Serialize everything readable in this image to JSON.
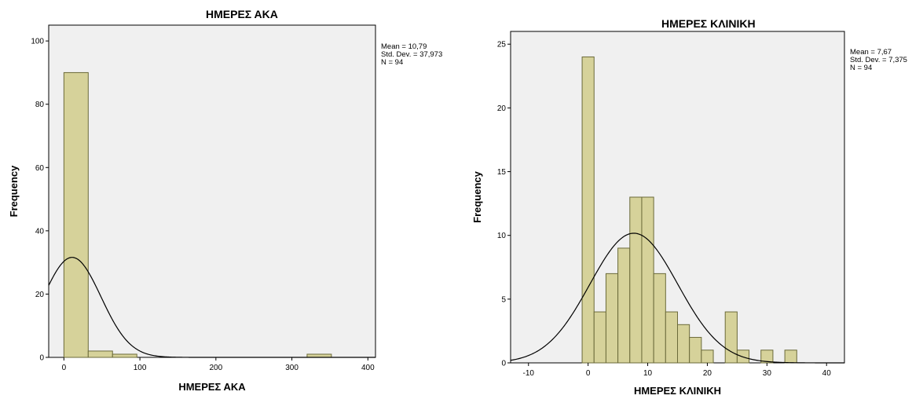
{
  "chart_data": [
    {
      "type": "bar",
      "title": "ΗΜΕΡΕΣ ΑΚΑ",
      "xlabel": "ΗΜΕΡΕΣ ΑΚΑ",
      "ylabel": "Frequency",
      "stats": [
        "Mean = 10,79",
        "Std. Dev. = 37,973",
        "N = 94"
      ],
      "xlim": [
        -20,
        410
      ],
      "ylim": [
        0,
        105
      ],
      "xticks": [
        0,
        100,
        200,
        300,
        400
      ],
      "yticks": [
        0,
        20,
        40,
        60,
        80,
        100
      ],
      "bin_width": 32,
      "bin_starts": [
        0,
        32,
        64,
        96,
        128,
        160,
        192,
        224,
        256,
        288,
        320
      ],
      "values": [
        90,
        2,
        1,
        0,
        0,
        0,
        0,
        0,
        0,
        0,
        1
      ],
      "normal_curve": {
        "mean": 10.79,
        "sd": 37.973,
        "n": 94
      },
      "grid": false,
      "legend": "none"
    },
    {
      "type": "bar",
      "title": "ΗΜΕΡΕΣ ΚΛΙΝΙΚΗ",
      "xlabel": "ΗΜΕΡΕΣ ΚΛΙΝΙΚΗ",
      "ylabel": "Frequency",
      "stats": [
        "Mean = 7,67",
        "Std. Dev. = 7,375",
        "N = 94"
      ],
      "xlim": [
        -13,
        43
      ],
      "ylim": [
        0,
        26
      ],
      "xticks": [
        -10,
        0,
        10,
        20,
        30,
        40
      ],
      "yticks": [
        0,
        5,
        10,
        15,
        20,
        25
      ],
      "bin_width": 2,
      "bin_starts": [
        -1,
        1,
        3,
        5,
        7,
        9,
        11,
        13,
        15,
        17,
        19,
        21,
        23,
        25,
        27,
        29,
        31,
        33
      ],
      "values": [
        24,
        4,
        7,
        9,
        13,
        13,
        7,
        4,
        3,
        2,
        1,
        0,
        4,
        1,
        0,
        1,
        0,
        1
      ],
      "normal_curve": {
        "mean": 7.67,
        "sd": 7.375,
        "n": 94
      },
      "grid": false,
      "legend": "none"
    }
  ],
  "colors": {
    "bar_fill": "#d6d29a",
    "bar_stroke": "#6b6a3a",
    "plot_bg": "#f0f0f0",
    "curve": "#000000"
  }
}
